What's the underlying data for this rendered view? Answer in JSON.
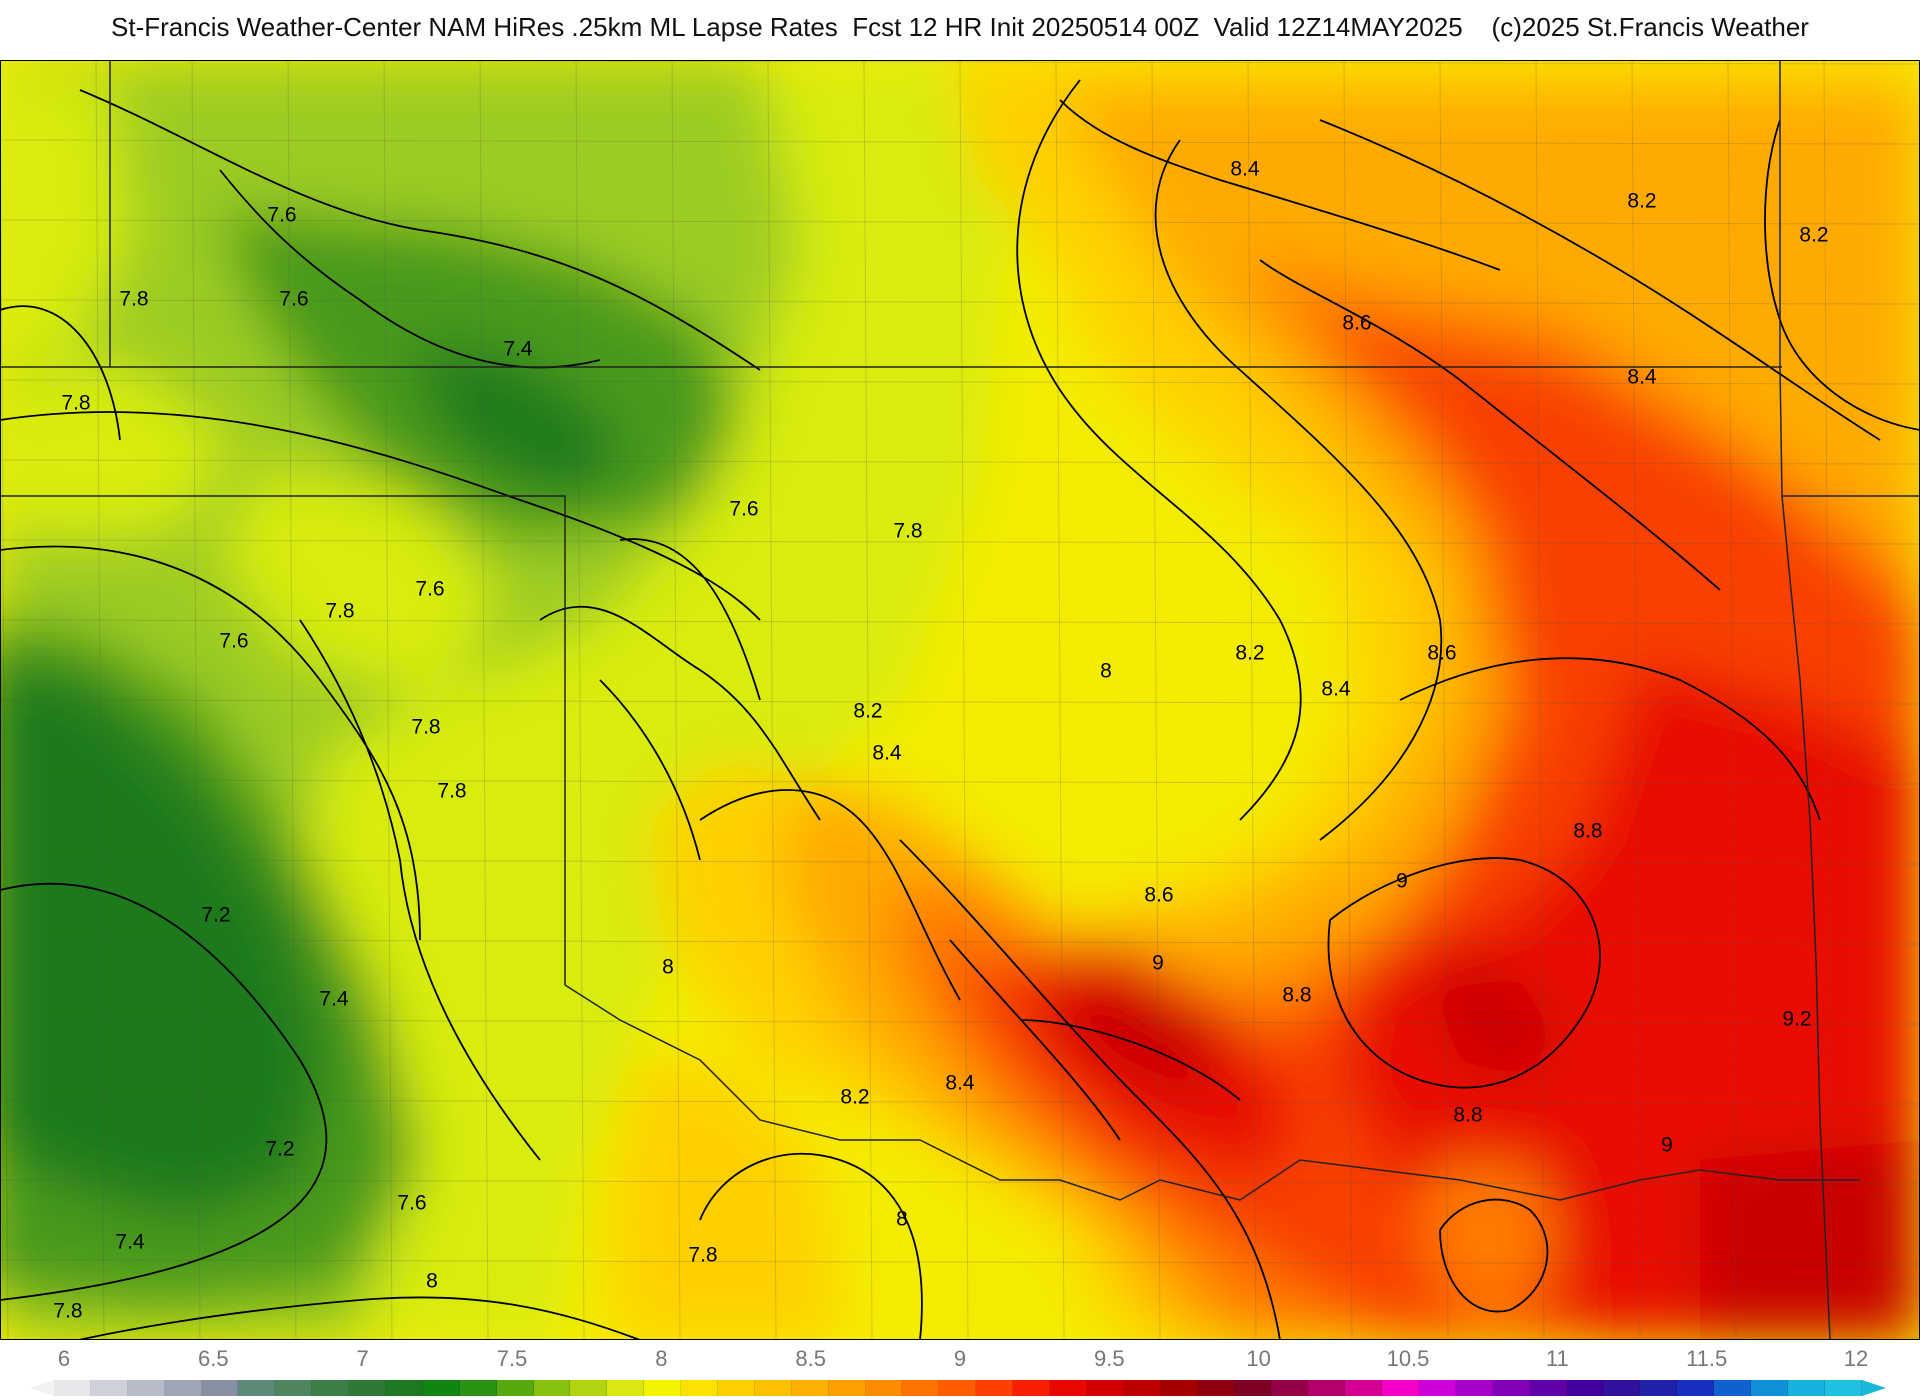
{
  "header": {
    "title": "St-Francis Weather-Center NAM HiRes .25km ML Lapse Rates  Fcst 12 HR Init 20250514 00Z  Valid 12Z14MAY2025    (c)2025 St.Francis Weather"
  },
  "map": {
    "fill_regions": [
      {
        "level": 7.2,
        "color": "#1a7a1a"
      },
      {
        "level": 7.4,
        "color": "#4a9a1e"
      },
      {
        "level": 7.6,
        "color": "#9ccc20"
      },
      {
        "level": 7.8,
        "color": "#d8ec10"
      },
      {
        "level": 8.0,
        "color": "#f4f000"
      },
      {
        "level": 8.2,
        "color": "#ffd000"
      },
      {
        "level": 8.4,
        "color": "#ffaa00"
      },
      {
        "level": 8.6,
        "color": "#ff7a00"
      },
      {
        "level": 8.8,
        "color": "#f84000"
      },
      {
        "level": 9.0,
        "color": "#e81000"
      },
      {
        "level": 9.2,
        "color": "#c80000"
      }
    ],
    "contour_labels": [
      {
        "text": "8.4",
        "level": 8.4
      },
      {
        "text": "8.2",
        "level": 8.2
      },
      {
        "text": "8.2",
        "level": 8.2
      },
      {
        "text": "7.6",
        "level": 7.6
      },
      {
        "text": "7.8",
        "level": 7.8
      },
      {
        "text": "7.6",
        "level": 7.6
      },
      {
        "text": "8.6",
        "level": 8.6
      },
      {
        "text": "7.4",
        "level": 7.4
      },
      {
        "text": "8.4",
        "level": 8.4
      },
      {
        "text": "7.8",
        "level": 7.8
      },
      {
        "text": "7.6",
        "level": 7.6
      },
      {
        "text": "7.8",
        "level": 7.8
      },
      {
        "text": "7.6",
        "level": 7.6
      },
      {
        "text": "7.8",
        "level": 7.8
      },
      {
        "text": "7.6",
        "level": 7.6
      },
      {
        "text": "8.2",
        "level": 8.2
      },
      {
        "text": "8.6",
        "level": 8.6
      },
      {
        "text": "8",
        "level": 8.0
      },
      {
        "text": "8.4",
        "level": 8.4
      },
      {
        "text": "7.8",
        "level": 7.8
      },
      {
        "text": "8.2",
        "level": 8.2
      },
      {
        "text": "8.4",
        "level": 8.4
      },
      {
        "text": "7.8",
        "level": 7.8
      },
      {
        "text": "8.8",
        "level": 8.8
      },
      {
        "text": "9",
        "level": 9.0
      },
      {
        "text": "7.2",
        "level": 7.2
      },
      {
        "text": "8.6",
        "level": 8.6
      },
      {
        "text": "9",
        "level": 9.0
      },
      {
        "text": "8",
        "level": 8.0
      },
      {
        "text": "7.4",
        "level": 7.4
      },
      {
        "text": "8.8",
        "level": 8.8
      },
      {
        "text": "9.2",
        "level": 9.2
      },
      {
        "text": "8.4",
        "level": 8.4
      },
      {
        "text": "8.2",
        "level": 8.2
      },
      {
        "text": "8.8",
        "level": 8.8
      },
      {
        "text": "7.2",
        "level": 7.2
      },
      {
        "text": "9",
        "level": 9.0
      },
      {
        "text": "8",
        "level": 8.0
      },
      {
        "text": "7.6",
        "level": 7.6
      },
      {
        "text": "7.4",
        "level": 7.4
      },
      {
        "text": "7.8",
        "level": 7.8
      },
      {
        "text": "8",
        "level": 8.0
      },
      {
        "text": "7.8",
        "level": 7.8
      }
    ]
  },
  "colorbar": {
    "ticks": [
      "6",
      "6.5",
      "7",
      "7.5",
      "8",
      "8.5",
      "9",
      "9.5",
      "10",
      "10.5",
      "11",
      "11.5",
      "12"
    ],
    "colors": [
      "#e8e8ec",
      "#d0d2da",
      "#b8bcc8",
      "#a0a6b6",
      "#8890a4",
      "#5e8a78",
      "#4e845e",
      "#3e7e48",
      "#2e7a34",
      "#1e7a22",
      "#128412",
      "#2a9212",
      "#58a810",
      "#88c010",
      "#b0d410",
      "#d8e810",
      "#f4f400",
      "#fce000",
      "#ffd000",
      "#ffc000",
      "#ffb000",
      "#ffa000",
      "#ff8c00",
      "#ff7400",
      "#ff5c00",
      "#ff4000",
      "#f82000",
      "#e80800",
      "#d40000",
      "#bc0000",
      "#a40000",
      "#8e0010",
      "#7e0024",
      "#960046",
      "#b4006c",
      "#d40094",
      "#f400c8",
      "#d000d8",
      "#a800c8",
      "#8400b8",
      "#6000a8",
      "#44009c",
      "#30109c",
      "#2020a8",
      "#1830c0",
      "#1060d0",
      "#1090d8",
      "#18b0dc",
      "#20c0e0"
    ],
    "arrow_right_color": "#1ab8d8"
  }
}
